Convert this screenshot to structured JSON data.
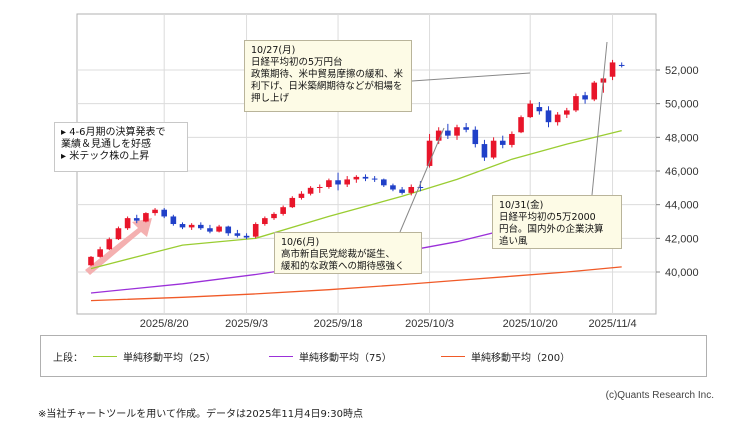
{
  "chart_data": {
    "type": "candlestick",
    "ylim": [
      38500,
      53000
    ],
    "y_ticks": [
      40000,
      42000,
      44000,
      46000,
      48000,
      50000,
      52000
    ],
    "y_tick_labels": [
      "40,000",
      "42,000",
      "44,000",
      "46,000",
      "48,000",
      "50,000",
      "52,000"
    ],
    "x_tick_labels": [
      "2025/8/20",
      "2025/9/3",
      "2025/9/18",
      "2025/10/3",
      "2025/10/20",
      "2025/11/4"
    ],
    "x_tick_index": [
      8,
      17,
      27,
      37,
      48,
      57
    ],
    "grid": true,
    "candles": [
      {
        "o": 40400,
        "h": 40950,
        "l": 40350,
        "c": 40900
      },
      {
        "o": 40900,
        "h": 41500,
        "l": 40850,
        "c": 41350
      },
      {
        "o": 41350,
        "h": 42050,
        "l": 41300,
        "c": 41950
      },
      {
        "o": 41950,
        "h": 42700,
        "l": 41900,
        "c": 42600
      },
      {
        "o": 42600,
        "h": 43300,
        "l": 42500,
        "c": 43200
      },
      {
        "o": 43200,
        "h": 43400,
        "l": 42900,
        "c": 43050
      },
      {
        "o": 43000,
        "h": 43550,
        "l": 42950,
        "c": 43500
      },
      {
        "o": 43500,
        "h": 43800,
        "l": 43350,
        "c": 43700
      },
      {
        "o": 43700,
        "h": 43800,
        "l": 43200,
        "c": 43300
      },
      {
        "o": 43300,
        "h": 43400,
        "l": 42750,
        "c": 42850
      },
      {
        "o": 42850,
        "h": 42950,
        "l": 42550,
        "c": 42650
      },
      {
        "o": 42650,
        "h": 42900,
        "l": 42500,
        "c": 42800
      },
      {
        "o": 42800,
        "h": 42950,
        "l": 42500,
        "c": 42600
      },
      {
        "o": 42600,
        "h": 42800,
        "l": 42300,
        "c": 42400
      },
      {
        "o": 42400,
        "h": 42800,
        "l": 42350,
        "c": 42700
      },
      {
        "o": 42700,
        "h": 42750,
        "l": 42150,
        "c": 42300
      },
      {
        "o": 42300,
        "h": 42500,
        "l": 42050,
        "c": 42150
      },
      {
        "o": 42150,
        "h": 42300,
        "l": 41950,
        "c": 42050
      },
      {
        "o": 42100,
        "h": 42950,
        "l": 42000,
        "c": 42850
      },
      {
        "o": 42850,
        "h": 43300,
        "l": 42750,
        "c": 43200
      },
      {
        "o": 43200,
        "h": 43550,
        "l": 43100,
        "c": 43450
      },
      {
        "o": 43450,
        "h": 43950,
        "l": 43350,
        "c": 43850
      },
      {
        "o": 43850,
        "h": 44500,
        "l": 43800,
        "c": 44400
      },
      {
        "o": 44400,
        "h": 44800,
        "l": 44300,
        "c": 44650
      },
      {
        "o": 44650,
        "h": 45100,
        "l": 44550,
        "c": 45000
      },
      {
        "o": 45000,
        "h": 45200,
        "l": 44700,
        "c": 45050
      },
      {
        "o": 45050,
        "h": 45550,
        "l": 44950,
        "c": 45450
      },
      {
        "o": 45450,
        "h": 45900,
        "l": 44850,
        "c": 45200
      },
      {
        "o": 45200,
        "h": 45700,
        "l": 45050,
        "c": 45500
      },
      {
        "o": 45500,
        "h": 45750,
        "l": 45300,
        "c": 45650
      },
      {
        "o": 45650,
        "h": 45800,
        "l": 45400,
        "c": 45550
      },
      {
        "o": 45550,
        "h": 45700,
        "l": 45350,
        "c": 45500
      },
      {
        "o": 45500,
        "h": 45550,
        "l": 45050,
        "c": 45150
      },
      {
        "o": 45150,
        "h": 45250,
        "l": 44800,
        "c": 44900
      },
      {
        "o": 44900,
        "h": 45050,
        "l": 44600,
        "c": 44700
      },
      {
        "o": 44700,
        "h": 45200,
        "l": 44550,
        "c": 45050
      },
      {
        "o": 45050,
        "h": 45400,
        "l": 44800,
        "c": 45000
      },
      {
        "o": 46300,
        "h": 48200,
        "l": 46200,
        "c": 47800
      },
      {
        "o": 47800,
        "h": 48600,
        "l": 47600,
        "c": 48400
      },
      {
        "o": 48400,
        "h": 48800,
        "l": 47900,
        "c": 48100
      },
      {
        "o": 48100,
        "h": 48750,
        "l": 47850,
        "c": 48600
      },
      {
        "o": 48600,
        "h": 48850,
        "l": 48300,
        "c": 48450
      },
      {
        "o": 48450,
        "h": 48650,
        "l": 47400,
        "c": 47600
      },
      {
        "o": 47600,
        "h": 47850,
        "l": 46600,
        "c": 46800
      },
      {
        "o": 46800,
        "h": 48000,
        "l": 46700,
        "c": 47800
      },
      {
        "o": 47800,
        "h": 48100,
        "l": 47350,
        "c": 47550
      },
      {
        "o": 47550,
        "h": 48350,
        "l": 47400,
        "c": 48200
      },
      {
        "o": 48300,
        "h": 49300,
        "l": 48250,
        "c": 49200
      },
      {
        "o": 49200,
        "h": 50200,
        "l": 49150,
        "c": 50000
      },
      {
        "o": 49800,
        "h": 50100,
        "l": 49350,
        "c": 49550
      },
      {
        "o": 49600,
        "h": 49850,
        "l": 48600,
        "c": 48900
      },
      {
        "o": 48900,
        "h": 49500,
        "l": 48700,
        "c": 49350
      },
      {
        "o": 49350,
        "h": 49750,
        "l": 49150,
        "c": 49600
      },
      {
        "o": 49600,
        "h": 50600,
        "l": 49500,
        "c": 50450
      },
      {
        "o": 50500,
        "h": 50700,
        "l": 50000,
        "c": 50250
      },
      {
        "o": 50250,
        "h": 51350,
        "l": 50150,
        "c": 51250
      },
      {
        "o": 51250,
        "h": 51550,
        "l": 50650,
        "c": 51500
      },
      {
        "o": 51600,
        "h": 52600,
        "l": 51400,
        "c": 52450
      },
      {
        "o": 52300,
        "h": 52450,
        "l": 52150,
        "c": 52250
      }
    ],
    "series": [
      {
        "name": "単純移動平均（25）",
        "color": "#9acd32",
        "values": [
          [
            0,
            40200
          ],
          [
            10,
            41600
          ],
          [
            18,
            42000
          ],
          [
            26,
            43300
          ],
          [
            34,
            44500
          ],
          [
            40,
            45500
          ],
          [
            46,
            46700
          ],
          [
            52,
            47600
          ],
          [
            58,
            48400
          ]
        ]
      },
      {
        "name": "単純移動平均（75）",
        "color": "#9b30d9",
        "values": [
          [
            0,
            38750
          ],
          [
            10,
            39300
          ],
          [
            18,
            39850
          ],
          [
            26,
            40500
          ],
          [
            34,
            41200
          ],
          [
            40,
            41800
          ],
          [
            46,
            42600
          ],
          [
            52,
            43400
          ],
          [
            58,
            44500
          ]
        ]
      },
      {
        "name": "単純移動平均（200）",
        "color": "#f05a28",
        "values": [
          [
            0,
            38300
          ],
          [
            10,
            38500
          ],
          [
            18,
            38700
          ],
          [
            26,
            38950
          ],
          [
            34,
            39250
          ],
          [
            40,
            39500
          ],
          [
            46,
            39750
          ],
          [
            52,
            40000
          ],
          [
            58,
            40300
          ]
        ]
      }
    ],
    "up_color": "#e8152a",
    "down_color": "#2040c8"
  },
  "annotations": {
    "left_box": {
      "lines": [
        "▸ 4-6月期の決算発表で",
        "業績＆見通しを好感",
        "▸ 米テック株の上昇"
      ]
    },
    "oct27_box": {
      "lines": [
        "10/27(月)",
        "日経平均初の5万円台",
        "政策期待、米中貿易摩擦の緩和、米",
        "利下げ、日米築網期待などが相場を",
        "押し上げ"
      ]
    },
    "oct6_box": {
      "lines": [
        "10/6(月)",
        "高市新自民党総裁が誕生、",
        "緩和的な政策への期待感強く"
      ]
    },
    "oct31_box": {
      "lines": [
        "10/31(金)",
        "日経平均初の5万2000",
        "円台。国内外の企業決算",
        "追い風"
      ]
    }
  },
  "legend": {
    "title": "上段：",
    "items": [
      {
        "label": "単純移動平均（25）",
        "color": "#9acd32"
      },
      {
        "label": "単純移動平均（75）",
        "color": "#9b30d9"
      },
      {
        "label": "単純移動平均（200）",
        "color": "#f05a28"
      }
    ]
  },
  "credit": "(c)Quants Research Inc.",
  "footnote": "※当社チャートツールを用いて作成。データは2025年11月4日9:30時点"
}
